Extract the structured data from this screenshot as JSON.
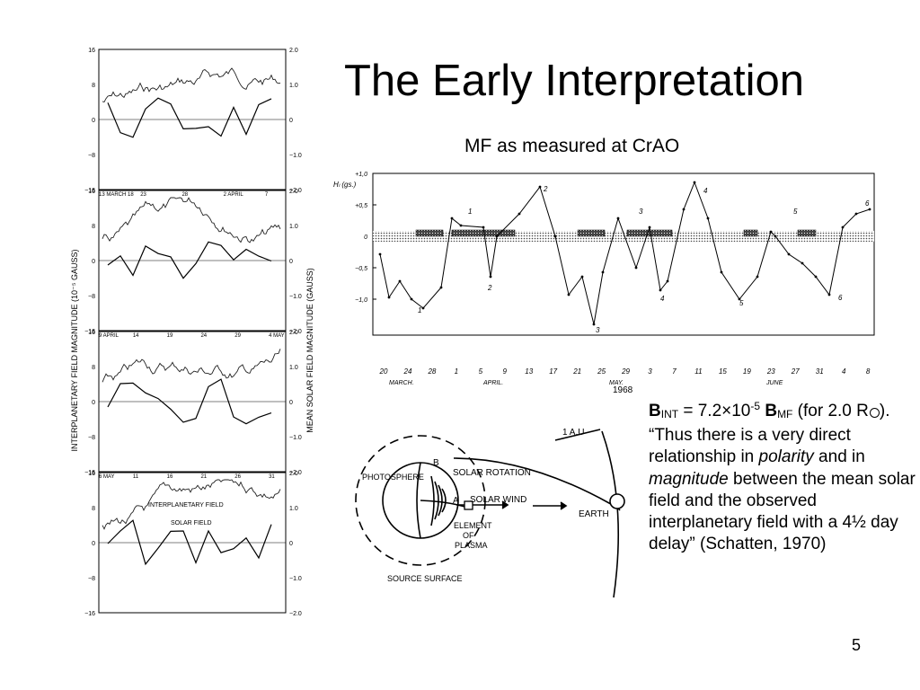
{
  "slide": {
    "title": "The Early Interpretation",
    "subtitle": "MF as measured at CrAO",
    "page_number": "5",
    "year_label": "1968",
    "quote": {
      "lead_bold_b1": "B",
      "lead_sub1": "INT",
      "lead_eq": " = 7.2×10",
      "lead_sup": "-5",
      "lead_bold_b2": "B",
      "lead_sub2": "MF",
      "lead_rest1": " (for 2.0 R",
      "lead_rest2": "). “Thus there is a very direct relationship in ",
      "italic1": "polarity",
      "mid": " and in ",
      "italic2": "magnitude",
      "tail": " between the mean solar field and the observed interplanetary field with a 4½ day delay” (Schatten, 1970)"
    }
  },
  "left_figure": {
    "y_axis_left": "INTERPLANETARY FIELD MAGNITUDE (10⁻⁵ GAUSS)",
    "y_axis_right": "MEAN SOLAR FIELD MAGNITUDE (GAUSS)",
    "left_ticks": [
      "16",
      "8",
      "0",
      "−8",
      "−16"
    ],
    "right_ticks": [
      "2.0",
      "1.0",
      "0",
      "−1.0",
      "−2.0"
    ],
    "panels": [
      {
        "dates": [
          "13 MARCH 18",
          "23",
          "28",
          "2 APRIL",
          "7"
        ]
      },
      {
        "dates": [
          "9 APRIL",
          "14",
          "19",
          "24",
          "29",
          "4 MAY"
        ]
      },
      {
        "dates": [
          "6 MAY",
          "11",
          "16",
          "21",
          "26",
          "31"
        ]
      },
      {
        "dates": [
          "2 JUNE",
          "7",
          "12",
          "17",
          "22",
          "27"
        ],
        "legend": [
          "INTERPLANETARY FIELD",
          "SOLAR FIELD"
        ]
      }
    ]
  },
  "crao_chart": {
    "y_label": "Hₗ (gs.)",
    "y_ticks": [
      "+1,0",
      "+0,5",
      "0",
      "−0,5",
      "−1,0"
    ],
    "x_ticks": [
      "20",
      "24",
      "28",
      "1",
      "5",
      "9",
      "13",
      "17",
      "21",
      "25",
      "29",
      "3",
      "7",
      "11",
      "15",
      "19",
      "23",
      "27",
      "31",
      "4",
      "8"
    ],
    "month_labels": [
      "MARCH.",
      "APRIL.",
      "MAY.",
      "JUNE"
    ],
    "point_labels": [
      "1",
      "2",
      "3",
      "4",
      "5",
      "6",
      "1",
      "2",
      "3",
      "4",
      "5",
      "6"
    ]
  },
  "diagram": {
    "labels": {
      "au": "1 A.U",
      "b": "B",
      "a": "A",
      "rotation": "SOLAR ROTATION",
      "wind": "SOLAR WIND",
      "photosphere": "PHOTOSPHERE",
      "element": "ELEMENT",
      "of": "OF",
      "plasma": "PLASMA",
      "earth": "EARTH",
      "source": "SOURCE  SURFACE"
    }
  }
}
